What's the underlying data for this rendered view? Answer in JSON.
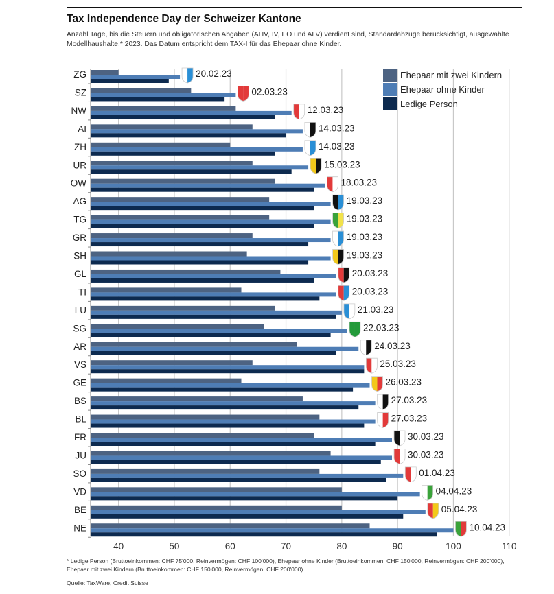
{
  "header": {
    "title": "Tax Independence Day der Schweizer Kantone",
    "subtitle": "Anzahl Tage, bis die Steuern und obligatorischen Abgaben (AHV, IV, EO und ALV) verdient sind, Standardabzüge berücksichtigt, ausgewählte Modellhaushalte,* 2023. Das Datum entspricht dem TAX-I für das Ehepaar ohne Kinder."
  },
  "footer": {
    "footnote": "* Ledige Person (Bruttoeinkommen: CHF 75'000, Reinvermögen: CHF 100'000), Ehepaar ohne Kinder (Bruttoeinkommen: CHF 150'000, Reinvermögen: CHF 200'000), Ehepaar mit zwei Kindern (Bruttoeinkommen: CHF 150'000, Reinvermögen: CHF 200'000)",
    "source": "Quelle: TaxWare, Credit Suisse"
  },
  "chart_data": {
    "type": "bar",
    "orientation": "horizontal",
    "title": "Tax Independence Day der Schweizer Kantone",
    "xlabel": "",
    "ylabel": "",
    "xlim": [
      35,
      110
    ],
    "xticks": [
      40,
      50,
      60,
      70,
      80,
      90,
      100,
      110
    ],
    "grid": true,
    "legend_position": "top-right",
    "categories": [
      "ZG",
      "SZ",
      "NW",
      "AI",
      "ZH",
      "UR",
      "OW",
      "AG",
      "TG",
      "GR",
      "SH",
      "GL",
      "TI",
      "LU",
      "SG",
      "AR",
      "VS",
      "GE",
      "BS",
      "BL",
      "FR",
      "JU",
      "SO",
      "VD",
      "BE",
      "NE"
    ],
    "series": [
      {
        "name": "Ehepaar mit zwei Kindern",
        "color": "#4d6382",
        "values": [
          40,
          53,
          61,
          64,
          60,
          64,
          68,
          67,
          67,
          64,
          63,
          69,
          62,
          68,
          66,
          72,
          64,
          62,
          73,
          76,
          75,
          78,
          76,
          80,
          80,
          85
        ]
      },
      {
        "name": "Ehepaar ohne Kinder",
        "color": "#4e7db5",
        "values": [
          51,
          61,
          71,
          73,
          73,
          74,
          77,
          78,
          78,
          78,
          78,
          79,
          79,
          80,
          81,
          83,
          84,
          85,
          86,
          86,
          89,
          89,
          91,
          94,
          95,
          100
        ]
      },
      {
        "name": "Ledige Person",
        "color": "#0d2a4f",
        "values": [
          49,
          59,
          68,
          70,
          68,
          71,
          75,
          75,
          75,
          74,
          74,
          75,
          76,
          79,
          78,
          79,
          84,
          82,
          83,
          84,
          86,
          87,
          88,
          90,
          91,
          97
        ]
      }
    ],
    "annotations": [
      "20.02.23",
      "02.03.23",
      "12.03.23",
      "14.03.23",
      "14.03.23",
      "15.03.23",
      "18.03.23",
      "19.03.23",
      "19.03.23",
      "19.03.23",
      "19.03.23",
      "20.03.23",
      "20.03.23",
      "21.03.23",
      "22.03.23",
      "24.03.23",
      "25.03.23",
      "26.03.23",
      "27.03.23",
      "27.03.23",
      "30.03.23",
      "30.03.23",
      "01.04.23",
      "04.04.23",
      "05.04.23",
      "10.04.23"
    ],
    "annotation_icons": [
      "coat-of-arms-zg",
      "coat-of-arms-sz",
      "coat-of-arms-nw",
      "coat-of-arms-ai",
      "coat-of-arms-zh",
      "coat-of-arms-ur",
      "coat-of-arms-ow",
      "coat-of-arms-ag",
      "coat-of-arms-tg",
      "coat-of-arms-gr",
      "coat-of-arms-sh",
      "coat-of-arms-gl",
      "coat-of-arms-ti",
      "coat-of-arms-lu",
      "coat-of-arms-sg",
      "coat-of-arms-ar",
      "coat-of-arms-vs",
      "coat-of-arms-ge",
      "coat-of-arms-bs",
      "coat-of-arms-bl",
      "coat-of-arms-fr",
      "coat-of-arms-ju",
      "coat-of-arms-so",
      "coat-of-arms-vd",
      "coat-of-arms-be",
      "coat-of-arms-ne"
    ],
    "icon_colors": [
      [
        "#ffffff",
        "#2a8fd6"
      ],
      [
        "#e23a3a",
        "#e23a3a"
      ],
      [
        "#e23a3a",
        "#ffffff"
      ],
      [
        "#ffffff",
        "#111111"
      ],
      [
        "#ffffff",
        "#2a8fd6"
      ],
      [
        "#f2c81a",
        "#111111"
      ],
      [
        "#e23a3a",
        "#ffffff"
      ],
      [
        "#111111",
        "#2a8fd6"
      ],
      [
        "#3aa33a",
        "#f2e24a"
      ],
      [
        "#ffffff",
        "#2a8fd6"
      ],
      [
        "#f2c81a",
        "#111111"
      ],
      [
        "#e23a3a",
        "#111111"
      ],
      [
        "#e23a3a",
        "#2a8fd6"
      ],
      [
        "#2a8fd6",
        "#ffffff"
      ],
      [
        "#239a3a",
        "#239a3a"
      ],
      [
        "#ffffff",
        "#111111"
      ],
      [
        "#e23a3a",
        "#ffffff"
      ],
      [
        "#f2c81a",
        "#e23a3a"
      ],
      [
        "#ffffff",
        "#111111"
      ],
      [
        "#ffffff",
        "#e23a3a"
      ],
      [
        "#111111",
        "#ffffff"
      ],
      [
        "#e23a3a",
        "#ffffff"
      ],
      [
        "#e23a3a",
        "#ffffff"
      ],
      [
        "#ffffff",
        "#3aa33a"
      ],
      [
        "#e23a3a",
        "#f2c81a"
      ],
      [
        "#3aa33a",
        "#e23a3a"
      ]
    ]
  }
}
